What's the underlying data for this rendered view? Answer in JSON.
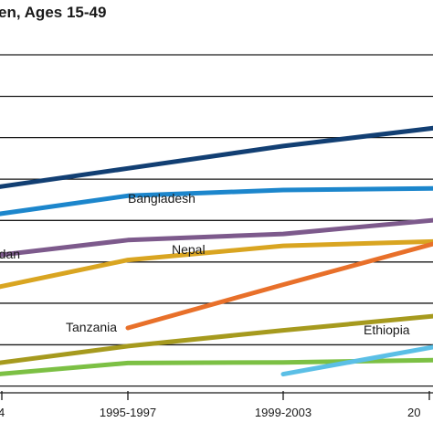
{
  "chart_data": {
    "type": "line",
    "title": "en, Ages 15-49",
    "categories": [
      "4",
      "1995-1997",
      "1999-2003",
      "20"
    ],
    "grid": true,
    "series": [
      {
        "id": "s1",
        "name": "",
        "color": "#123f73",
        "values": [
          0.6,
          0.664,
          0.73,
          0.785
        ]
      },
      {
        "id": "s2",
        "name": "",
        "color": "#1c86cc",
        "values": [
          0.52,
          0.583,
          0.6,
          0.605
        ]
      },
      {
        "id": "s3",
        "name": "Bangladesh",
        "color": "#7d5a8c",
        "values": [
          0.4,
          0.452,
          0.47,
          0.512
        ]
      },
      {
        "id": "s4",
        "name": "rdan",
        "color": "#d9a521",
        "values": [
          0.3,
          0.393,
          0.435,
          0.448
        ]
      },
      {
        "id": "s5",
        "name": "Nepal",
        "color": "#e8702a",
        "values": [
          null,
          0.192,
          0.32,
          0.445
        ]
      },
      {
        "id": "s6",
        "name": "Tanzania",
        "color": "#a69a1e",
        "values": [
          0.08,
          0.138,
          0.185,
          0.228
        ]
      },
      {
        "id": "s7",
        "name": "",
        "color": "#7cc044",
        "values": [
          0.05,
          0.088,
          0.09,
          0.097
        ]
      },
      {
        "id": "s8",
        "name": "Ethiopia",
        "color": "#5bbfe6",
        "values": [
          null,
          null,
          0.055,
          0.138
        ]
      }
    ]
  }
}
